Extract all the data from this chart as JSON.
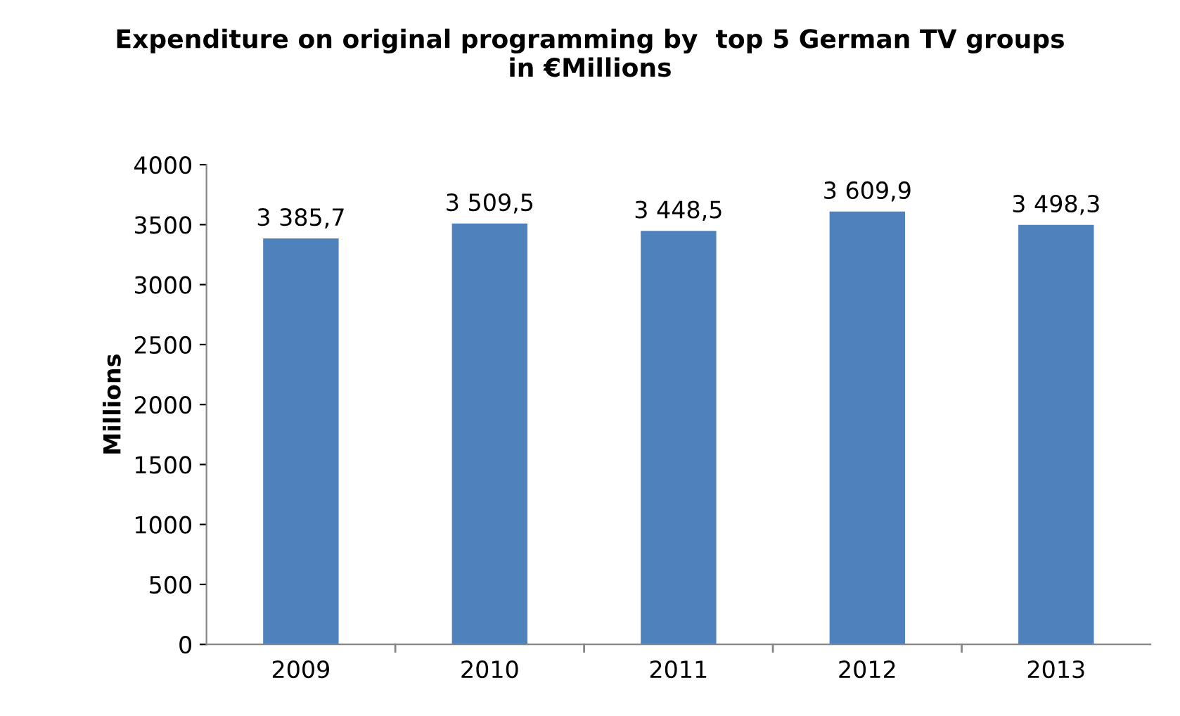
{
  "chart_data": {
    "type": "bar",
    "title": "Expenditure on original programming by  top 5 German TV groups\nin €Millions",
    "ylabel": "Millions",
    "categories": [
      "2009",
      "2010",
      "2011",
      "2012",
      "2013"
    ],
    "values": [
      3385.7,
      3509.5,
      3448.5,
      3609.9,
      3498.3
    ],
    "value_labels": [
      "3 385,7",
      "3 509,5",
      "3 448,5",
      "3 609,9",
      "3 498,3"
    ],
    "color": "#4f81bd",
    "ylim": [
      0,
      4000
    ],
    "yticks": [
      0,
      500,
      1000,
      1500,
      2000,
      2500,
      3000,
      3500,
      4000
    ],
    "grid": false,
    "legend": false
  }
}
